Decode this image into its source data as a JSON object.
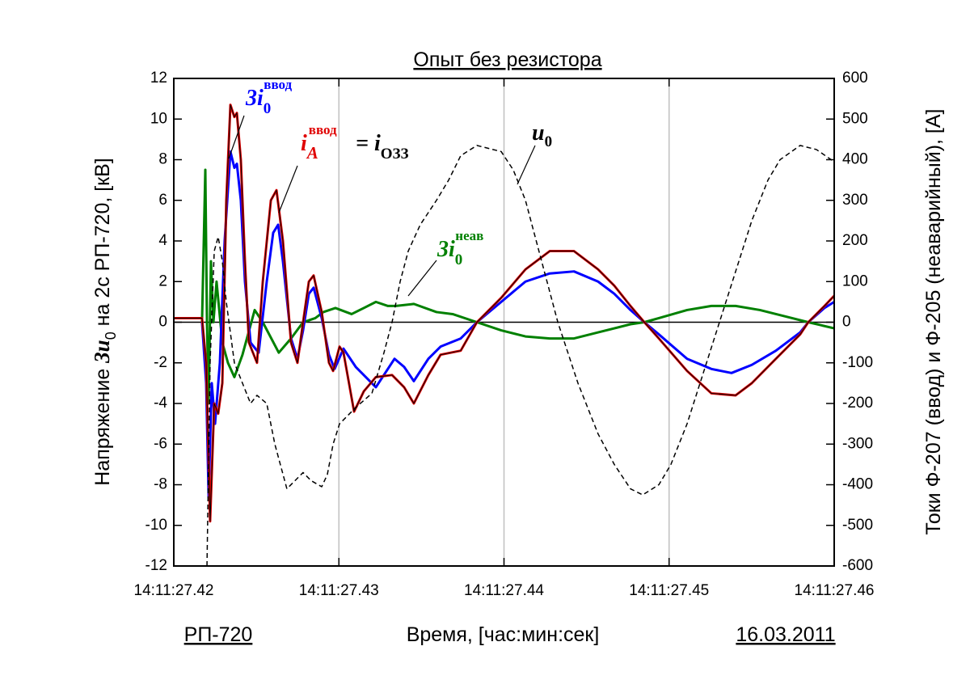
{
  "chart_data": {
    "type": "line",
    "title": "Опыт без резистора",
    "x_label": "Время, [час:мин:сек]",
    "y_label": {
      "text": "Напряжение ",
      "symbol": "3u",
      "sub": "0",
      "rest": " на 2с РП-720, [кВ]"
    },
    "y2_label": "Токи Ф-207 (ввод) и Ф-205 (неаварийный), [А]",
    "footer_left": "РП-720",
    "footer_right": "16.03.2011",
    "xlim": [
      27.42,
      27.46
    ],
    "xticks": [
      {
        "value": 27.42,
        "label": "14:11:27.42"
      },
      {
        "value": 27.43,
        "label": "14:11:27.43"
      },
      {
        "value": 27.44,
        "label": "14:11:27.44"
      },
      {
        "value": 27.45,
        "label": "14:11:27.45"
      },
      {
        "value": 27.46,
        "label": "14:11:27.46"
      }
    ],
    "ylim": [
      -12,
      12
    ],
    "yticks": [
      -12,
      -10,
      -8,
      -6,
      -4,
      -2,
      0,
      2,
      4,
      6,
      8,
      10,
      12
    ],
    "y2lim": [
      -600,
      600
    ],
    "y2ticks": [
      -600,
      -500,
      -400,
      -300,
      -200,
      -100,
      0,
      100,
      200,
      300,
      400,
      500,
      600
    ],
    "grid": "x",
    "zero_line": true,
    "series": [
      {
        "color": "#008000",
        "axis": "y2",
        "x": [
          27.42171,
          27.42191,
          27.42201,
          27.42211,
          27.42225,
          27.4224,
          27.42259,
          27.42294,
          27.42328,
          27.42367,
          27.42416,
          27.4249,
          27.42539,
          27.42636,
          27.4271,
          27.42783,
          27.42857,
          27.42906,
          27.42979,
          27.43077,
          27.43151,
          27.43224,
          27.43297,
          27.43346,
          27.43454,
          27.43591,
          27.43689,
          27.43836,
          27.43983,
          27.4413,
          27.44277,
          27.44424,
          27.4457,
          27.44766,
          27.4485,
          27.44938,
          27.45109,
          27.45256,
          27.45403,
          27.4555,
          27.45745,
          27.45843,
          27.46
        ],
        "values": [
          0,
          375,
          0,
          -200,
          150,
          0,
          100,
          -50,
          -100,
          -135,
          -80,
          30,
          0,
          -75,
          -40,
          0,
          10,
          25,
          35,
          20,
          35,
          50,
          40,
          40,
          45,
          25,
          20,
          0,
          -20,
          -35,
          -40,
          -40,
          -25,
          -5,
          0,
          10,
          30,
          40,
          40,
          30,
          10,
          0,
          -15
        ]
      },
      {
        "color": "#0000ff",
        "axis": "y2",
        "x": [
          27.42171,
          27.42196,
          27.42211,
          27.4223,
          27.4225,
          27.42279,
          27.42308,
          27.42343,
          27.42367,
          27.42382,
          27.42406,
          27.42431,
          27.42465,
          27.42514,
          27.42563,
          27.42602,
          27.42632,
          27.42661,
          27.4271,
          27.42749,
          27.42783,
          27.42818,
          27.42847,
          27.42896,
          27.4294,
          27.42974,
          27.43028,
          27.43102,
          27.43224,
          27.43337,
          27.43395,
          27.43454,
          27.43542,
          27.43616,
          27.43738,
          27.43836,
          27.43983,
          27.4413,
          27.44277,
          27.44424,
          27.4457,
          27.44668,
          27.44766,
          27.4485,
          27.44938,
          27.45109,
          27.45256,
          27.45378,
          27.45501,
          27.45647,
          27.45794,
          27.45843,
          27.45941,
          27.46
        ],
        "values": [
          0,
          -150,
          -430,
          -150,
          -250,
          -100,
          200,
          420,
          380,
          390,
          300,
          100,
          -50,
          -75,
          100,
          220,
          240,
          150,
          -40,
          -90,
          -20,
          70,
          85,
          10,
          -80,
          -115,
          -65,
          -110,
          -160,
          -90,
          -110,
          -145,
          -90,
          -60,
          -40,
          0,
          50,
          100,
          120,
          125,
          100,
          70,
          30,
          0,
          -30,
          -90,
          -115,
          -125,
          -105,
          -70,
          -25,
          0,
          35,
          50
        ]
      },
      {
        "color": "#e00000",
        "overlay_color": "#000000",
        "axis": "y2",
        "x": [
          27.42,
          27.42171,
          27.42196,
          27.4222,
          27.42245,
          27.42269,
          27.42294,
          27.42318,
          27.42343,
          27.42367,
          27.42382,
          27.42406,
          27.42431,
          27.42455,
          27.42504,
          27.42539,
          27.42588,
          27.42622,
          27.42661,
          27.4271,
          27.42749,
          27.42783,
          27.42818,
          27.42847,
          27.42896,
          27.4294,
          27.42965,
          27.43004,
          27.43028,
          27.43092,
          27.43151,
          27.43224,
          27.43322,
          27.43395,
          27.43454,
          27.43542,
          27.43616,
          27.43738,
          27.43836,
          27.43983,
          27.4413,
          27.44277,
          27.44424,
          27.4457,
          27.44668,
          27.44766,
          27.4485,
          27.44938,
          27.45109,
          27.45256,
          27.45403,
          27.45501,
          27.45647,
          27.45794,
          27.45843,
          27.45941,
          27.46
        ],
        "values": [
          10,
          10,
          -100,
          -490,
          -200,
          -225,
          -150,
          300,
          535,
          505,
          515,
          400,
          150,
          -50,
          -100,
          100,
          300,
          325,
          200,
          -50,
          -100,
          0,
          100,
          115,
          25,
          -100,
          -120,
          -60,
          -75,
          -220,
          -170,
          -135,
          -130,
          -160,
          -200,
          -130,
          -80,
          -70,
          0,
          60,
          130,
          175,
          175,
          130,
          90,
          40,
          0,
          -40,
          -120,
          -175,
          -180,
          -150,
          -90,
          -30,
          0,
          40,
          65
        ]
      },
      {
        "color": "#000000",
        "line_style": "dashed",
        "axis": "y",
        "x": [
          27.42201,
          27.4222,
          27.42245,
          27.42269,
          27.42294,
          27.42318,
          27.42367,
          27.42416,
          27.42465,
          27.42504,
          27.42563,
          27.42612,
          27.42685,
          27.42734,
          27.42783,
          27.42832,
          27.42896,
          27.4293,
          27.42965,
          27.43004,
          27.43102,
          27.432,
          27.43273,
          27.43322,
          27.43371,
          27.4342,
          27.43493,
          27.43591,
          27.43665,
          27.43738,
          27.43836,
          27.43983,
          27.44056,
          27.4413,
          27.44228,
          27.44326,
          27.44448,
          27.4457,
          27.44668,
          27.44766,
          27.4484,
          27.44938,
          27.45011,
          27.45109,
          27.45207,
          27.45305,
          27.45403,
          27.45501,
          27.45599,
          27.45672,
          27.45794,
          27.45892,
          27.46
        ],
        "values": [
          -12,
          -2,
          3.5,
          4.2,
          3,
          1,
          -2,
          -3,
          -4,
          -3.6,
          -4,
          -6,
          -8.2,
          -7.8,
          -7.4,
          -7.8,
          -8.1,
          -7.5,
          -6,
          -5,
          -4.2,
          -3.5,
          -1.5,
          0,
          2,
          3.5,
          4.8,
          6,
          7,
          8.2,
          8.7,
          8.4,
          7.5,
          6,
          3,
          0,
          -3,
          -5.5,
          -7,
          -8.2,
          -8.5,
          -8,
          -7,
          -5,
          -2.5,
          0,
          2.5,
          5,
          7,
          8,
          8.7,
          8.5,
          7.9
        ]
      }
    ],
    "annotations": [
      {
        "text": "3i",
        "sub": "0",
        "sup": "ввод",
        "color": "#0000ff"
      },
      {
        "text": "i",
        "sub": "A",
        "sup": "ввод",
        "color": "#e00000"
      },
      {
        "text": "= i",
        "sub": "ОЗЗ",
        "color": "#000000"
      },
      {
        "text": "u",
        "sub": "0",
        "color": "#000000"
      },
      {
        "text": "3i",
        "sub": "0",
        "sup": "неав",
        "color": "#008000"
      }
    ]
  }
}
